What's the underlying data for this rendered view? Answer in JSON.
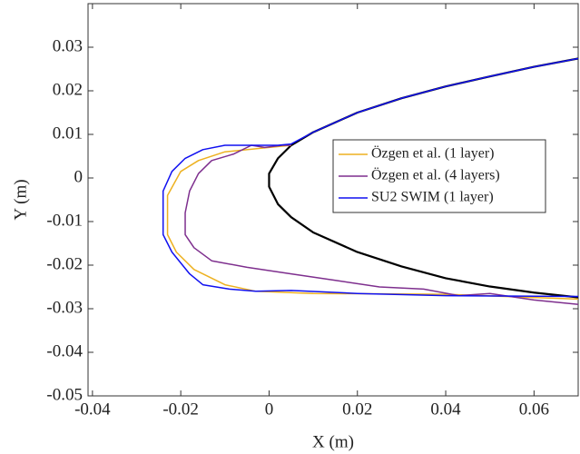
{
  "chart_data": {
    "type": "line",
    "xlabel": "X (m)",
    "ylabel": "Y (m)",
    "xlim": [
      -0.041,
      0.07
    ],
    "ylim": [
      -0.05,
      0.04
    ],
    "xticks": [
      -0.04,
      -0.02,
      0,
      0.02,
      0.04,
      0.06
    ],
    "yticks": [
      -0.05,
      -0.04,
      -0.03,
      -0.02,
      -0.01,
      0,
      0.01,
      0.02,
      0.03
    ],
    "legend": "right",
    "series": [
      {
        "color": "#000000",
        "x": [
          0.07,
          0.06,
          0.05,
          0.04,
          0.03,
          0.02,
          0.01,
          0.005,
          0.002,
          0,
          0,
          0.002,
          0.005,
          0.01,
          0.02,
          0.03,
          0.04,
          0.05,
          0.06,
          0.07
        ],
        "values": [
          0.0274,
          0.0255,
          0.0233,
          0.021,
          0.0183,
          0.015,
          0.0105,
          0.0075,
          0.0045,
          0.001,
          -0.002,
          -0.006,
          -0.009,
          -0.0125,
          -0.017,
          -0.0203,
          -0.023,
          -0.0249,
          -0.0263,
          -0.0274
        ]
      },
      {
        "name": "Özgen et al. (1 layer)",
        "color": "#EDB120",
        "x": [
          0.005,
          0,
          -0.01,
          -0.016,
          -0.02,
          -0.023,
          -0.023,
          -0.021,
          -0.017,
          -0.01,
          -0.003,
          0.01,
          0.04,
          0.07
        ],
        "values": [
          0.0075,
          0.007,
          0.006,
          0.004,
          0.0015,
          -0.004,
          -0.013,
          -0.017,
          -0.021,
          -0.0245,
          -0.026,
          -0.0265,
          -0.0267,
          -0.0278
        ]
      },
      {
        "name": "Özgen et al. (4 layers)",
        "color": "#7E2F8E",
        "x": [
          0.005,
          0.003,
          -0.001,
          -0.004,
          -0.008,
          -0.013,
          -0.016,
          -0.018,
          -0.019,
          -0.019,
          -0.017,
          -0.013,
          -0.005,
          0.005,
          0.015,
          0.025,
          0.035,
          0.043,
          0.05,
          0.06,
          0.07
        ],
        "values": [
          0.0075,
          0.0075,
          0.007,
          0.0075,
          0.0055,
          0.004,
          0.001,
          -0.003,
          -0.008,
          -0.013,
          -0.016,
          -0.019,
          -0.0205,
          -0.022,
          -0.0235,
          -0.025,
          -0.0255,
          -0.027,
          -0.0265,
          -0.028,
          -0.029
        ]
      },
      {
        "name": "SU2 SWIM (1 layer)",
        "color": "#1010F0",
        "x": [
          0.07,
          0.06,
          0.05,
          0.04,
          0.03,
          0.02,
          0.01,
          0.005,
          0.002,
          -0.01,
          -0.015,
          -0.019,
          -0.022,
          -0.024,
          -0.024,
          -0.022,
          -0.018,
          -0.015,
          -0.009,
          -0.003,
          0.005,
          0.02,
          0.04,
          0.07
        ],
        "values": [
          0.0274,
          0.0255,
          0.0233,
          0.021,
          0.0183,
          0.015,
          0.0105,
          0.0078,
          0.0075,
          0.0075,
          0.0065,
          0.0045,
          0.0015,
          -0.003,
          -0.013,
          -0.017,
          -0.022,
          -0.0245,
          -0.0255,
          -0.026,
          -0.0258,
          -0.0265,
          -0.027,
          -0.0272
        ]
      }
    ]
  }
}
